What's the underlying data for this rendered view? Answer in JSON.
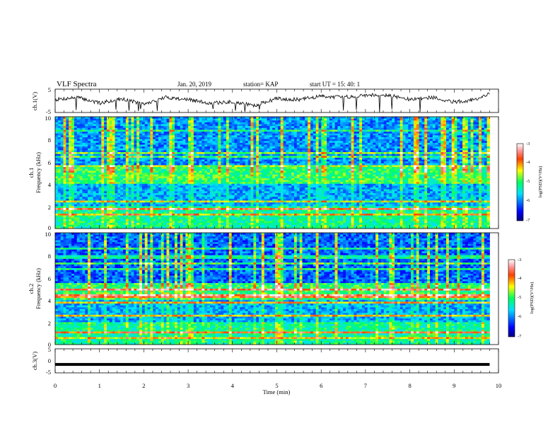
{
  "header": {
    "title": "VLF Spectra",
    "date": "Jan. 20, 2019",
    "station": "station= KAP",
    "start_ut": "start  UT =   15: 40: 1"
  },
  "chart_data": [
    {
      "type": "line",
      "name": "ch1-voltage",
      "ylabel": "ch.1(V)",
      "ylim": [
        -5,
        5
      ],
      "yticks": [
        "5",
        "-5"
      ],
      "xlim": [
        0,
        10
      ],
      "xlabel": "",
      "series": [
        {
          "x": [
            0,
            0.5,
            1,
            1.5,
            2,
            2.5,
            3,
            3.5,
            4,
            4.5,
            5,
            5.5,
            6,
            6.5,
            7,
            7.5,
            8,
            8.5,
            9,
            9.5,
            9.8
          ],
          "values": [
            0.5,
            1.5,
            -1,
            1,
            -1.5,
            1.5,
            0.5,
            -1,
            -0.5,
            -2,
            1,
            0.5,
            2,
            1.5,
            2.5,
            2.5,
            0.5,
            1.5,
            -0.5,
            0.5,
            3
          ]
        }
      ]
    },
    {
      "type": "heatmap",
      "name": "ch1-spectrogram",
      "ylabel_line1": "ch.1",
      "ylabel_line2": "Frequency (kHz)",
      "ylim": [
        0,
        10
      ],
      "yticks": [
        "0",
        "2",
        "4",
        "6",
        "8",
        "10"
      ],
      "xlim": [
        0,
        9.8
      ],
      "colorbar": {
        "label": "log(PSD)(V²/Hz)",
        "range": [
          -7,
          -3
        ],
        "ticks": [
          "-3",
          "-4",
          "-5",
          "-6",
          "-7"
        ]
      }
    },
    {
      "type": "heatmap",
      "name": "ch2-spectrogram",
      "ylabel_line1": "ch.2",
      "ylabel_line2": "Frequency (kHz)",
      "ylim": [
        0,
        10
      ],
      "yticks": [
        "0",
        "2",
        "4",
        "6",
        "8",
        "10"
      ],
      "xlim": [
        0,
        9.8
      ],
      "colorbar": {
        "label": "log(PSD)(V²/Hz)",
        "range": [
          -7,
          -3
        ],
        "ticks": [
          "-3",
          "-4",
          "-5",
          "-6",
          "-7"
        ]
      }
    },
    {
      "type": "line",
      "name": "ch3-voltage",
      "ylabel": "ch.3(V)",
      "ylim": [
        -5,
        5
      ],
      "yticks": [
        "5",
        "0",
        "-5"
      ],
      "xlim": [
        0,
        10
      ],
      "xlabel": "Time  (min)",
      "xticks": [
        "0",
        "1",
        "2",
        "3",
        "4",
        "5",
        "6",
        "7",
        "8",
        "9",
        "10"
      ],
      "series": [
        {
          "x": [
            0,
            9.8
          ],
          "values": [
            -1.5,
            -1.5
          ]
        }
      ]
    }
  ]
}
